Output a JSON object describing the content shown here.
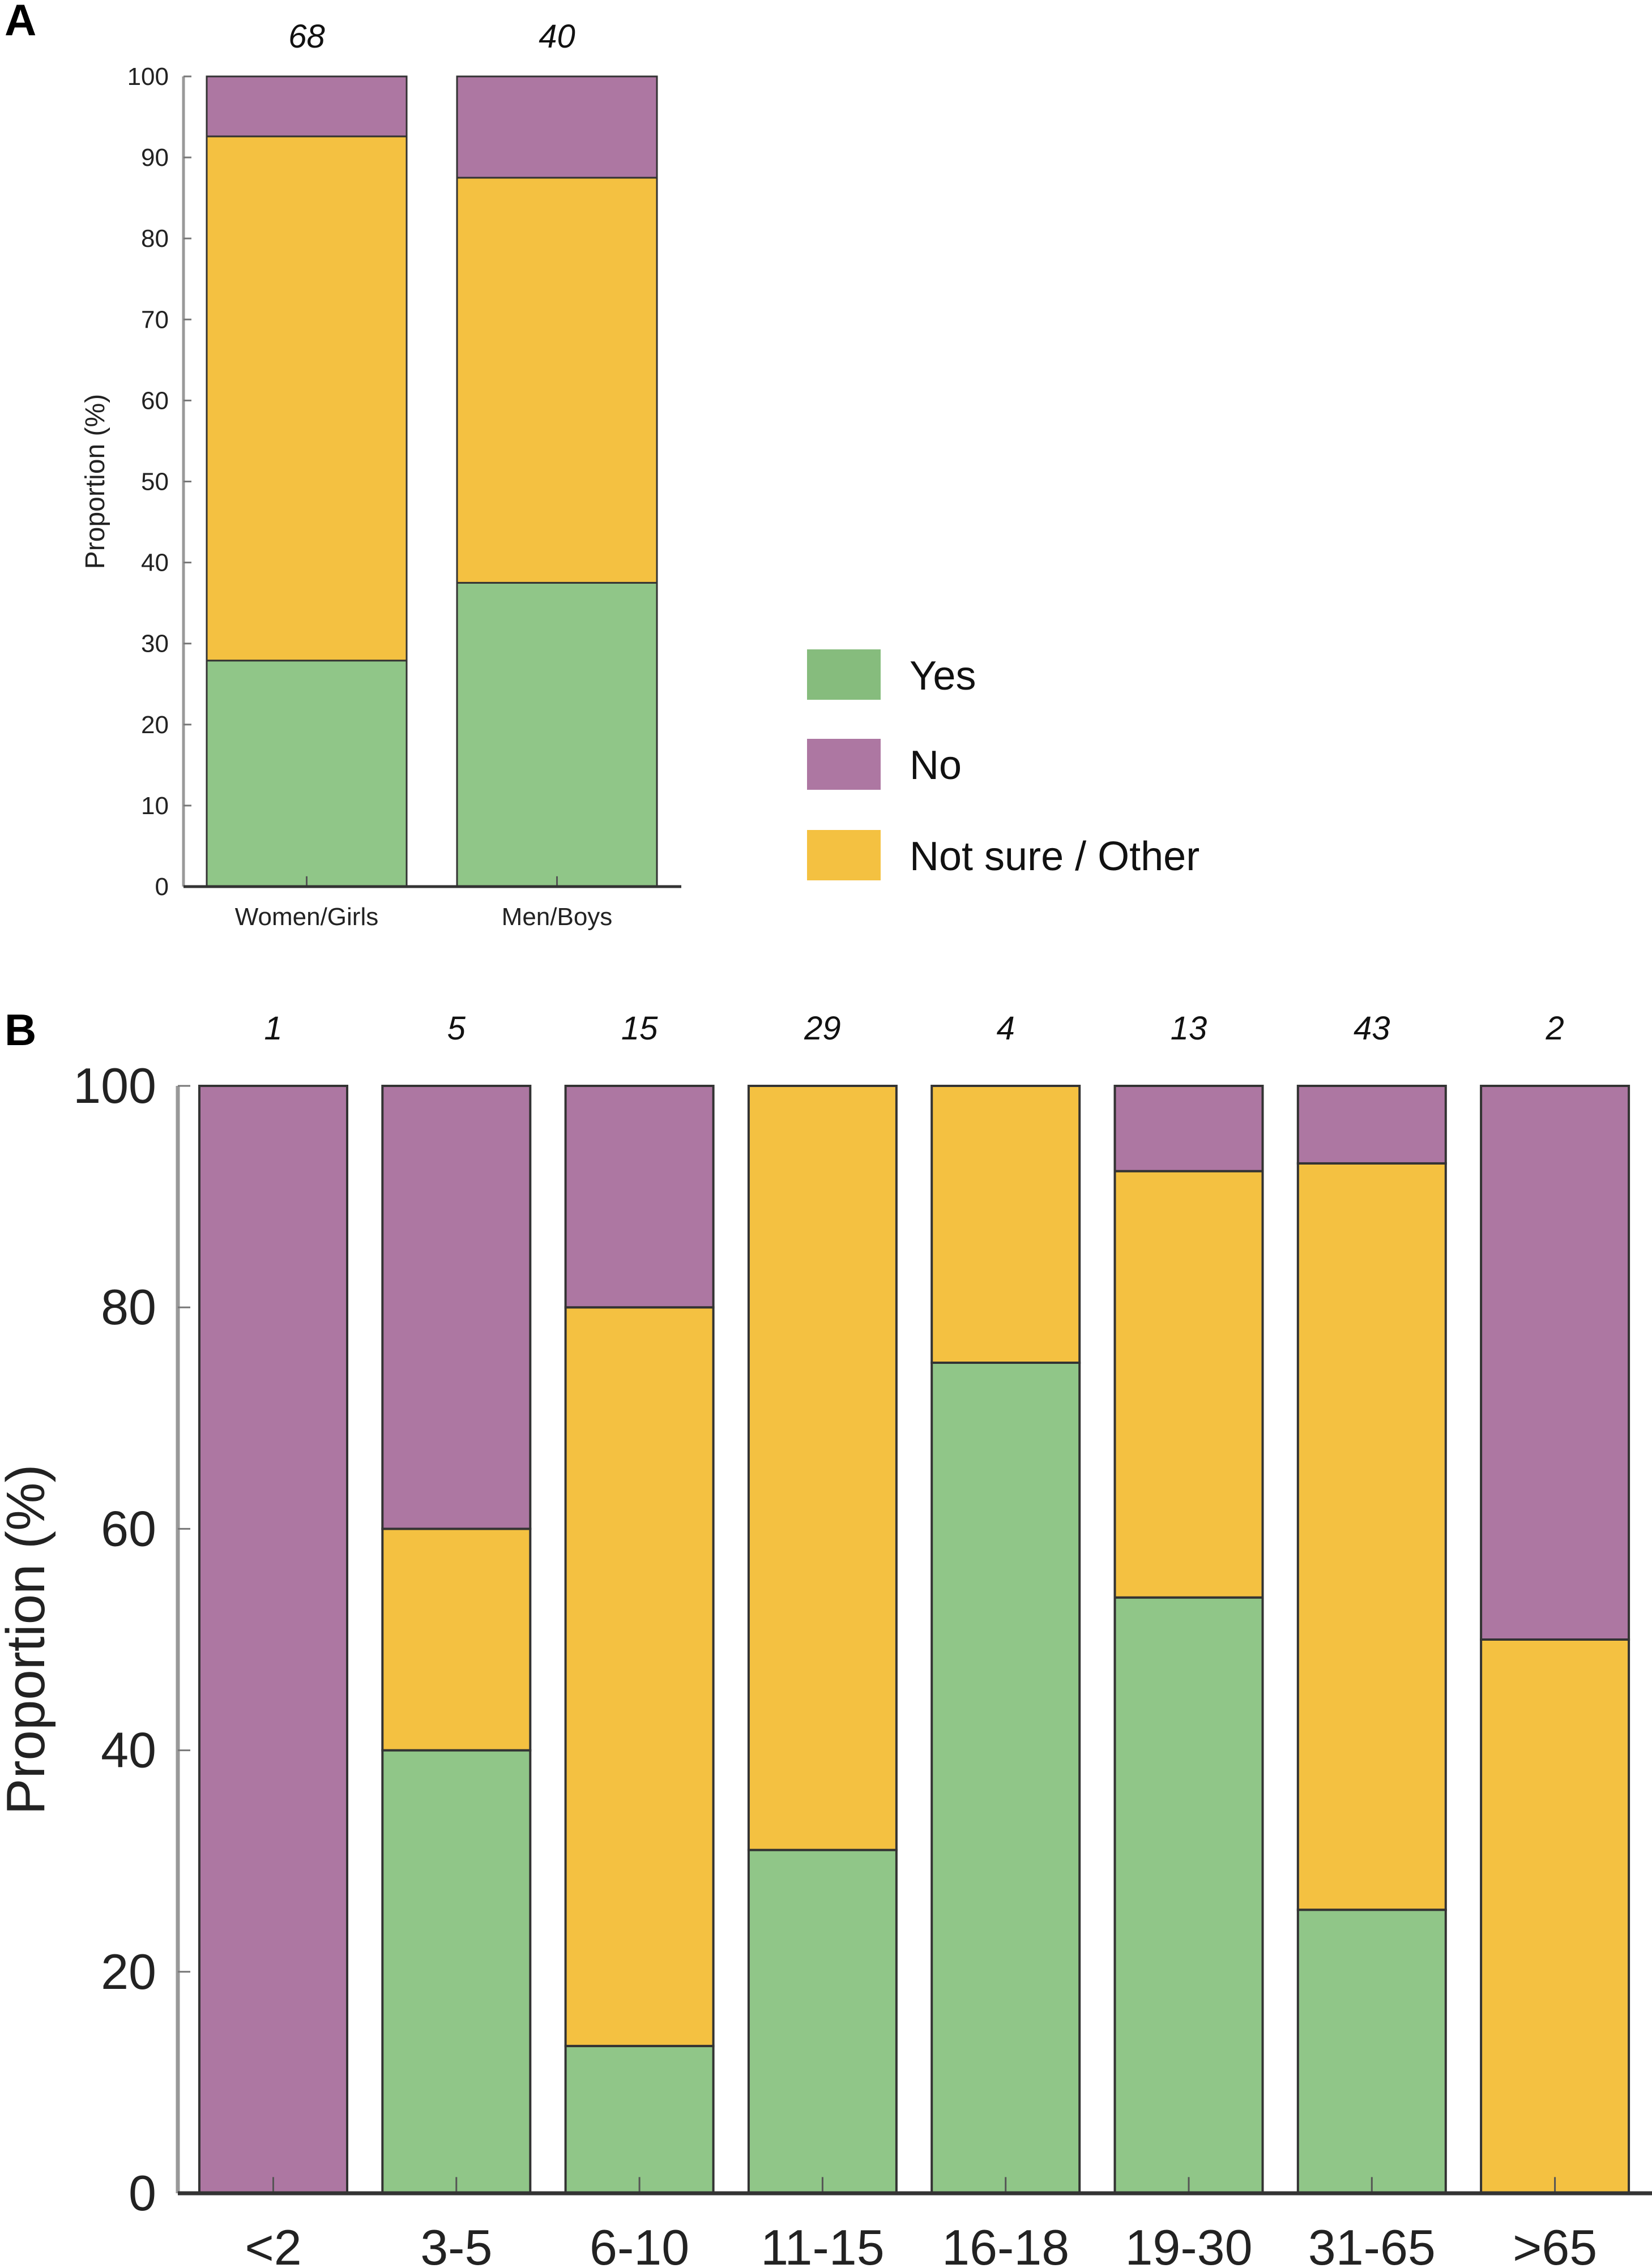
{
  "colors": {
    "yes": "#90C688",
    "no": "#AD77A2",
    "not_sure": "#F4C141",
    "legend_yes": "#86BC7D",
    "bar_edge": "#333333",
    "axis": "#555555"
  },
  "legend": {
    "items": [
      {
        "key": "yes",
        "label": "Yes"
      },
      {
        "key": "no",
        "label": "No"
      },
      {
        "key": "not_sure",
        "label": "Not sure / Other"
      }
    ]
  },
  "chart_data": [
    {
      "panel": "A",
      "type": "bar",
      "stacked": true,
      "title": "",
      "xlabel": "",
      "ylabel": "Proportion (%)",
      "ylim": [
        0,
        100
      ],
      "yticks": [
        0,
        10,
        20,
        30,
        40,
        50,
        60,
        70,
        80,
        90,
        100
      ],
      "categories": [
        "Women/Girls",
        "Men/Boys"
      ],
      "counts": [
        "68",
        "40"
      ],
      "series": [
        {
          "name": "Yes",
          "key": "yes",
          "values": [
            27.9,
            37.5
          ]
        },
        {
          "name": "Not sure / Other",
          "key": "not_sure",
          "values": [
            64.7,
            50.0
          ]
        },
        {
          "name": "No",
          "key": "no",
          "values": [
            7.4,
            12.5
          ]
        }
      ],
      "grid": false,
      "legend_position": "right"
    },
    {
      "panel": "B",
      "type": "bar",
      "stacked": true,
      "title": "",
      "xlabel": "",
      "ylabel": "Proportion (%)",
      "ylim": [
        0,
        100
      ],
      "yticks": [
        0,
        20,
        40,
        60,
        80,
        100
      ],
      "categories": [
        "<2",
        "3-5",
        "6-10",
        "11-15",
        "16-18",
        "19-30",
        "31-65",
        ">65"
      ],
      "counts": [
        "1",
        "5",
        "15",
        "29",
        "4",
        "13",
        "43",
        "2"
      ],
      "series": [
        {
          "name": "Yes",
          "key": "yes",
          "values": [
            0,
            40.0,
            13.3,
            31.0,
            75.0,
            53.8,
            25.6,
            0
          ]
        },
        {
          "name": "Not sure / Other",
          "key": "not_sure",
          "values": [
            0,
            20.0,
            66.7,
            69.0,
            25.0,
            38.5,
            67.4,
            50.0
          ]
        },
        {
          "name": "No",
          "key": "no",
          "values": [
            100,
            40.0,
            20.0,
            0,
            0,
            7.7,
            7.0,
            50.0
          ]
        }
      ],
      "grid": false,
      "legend_position": "none"
    }
  ],
  "panels": {
    "a_letter": "A",
    "b_letter": "B"
  }
}
